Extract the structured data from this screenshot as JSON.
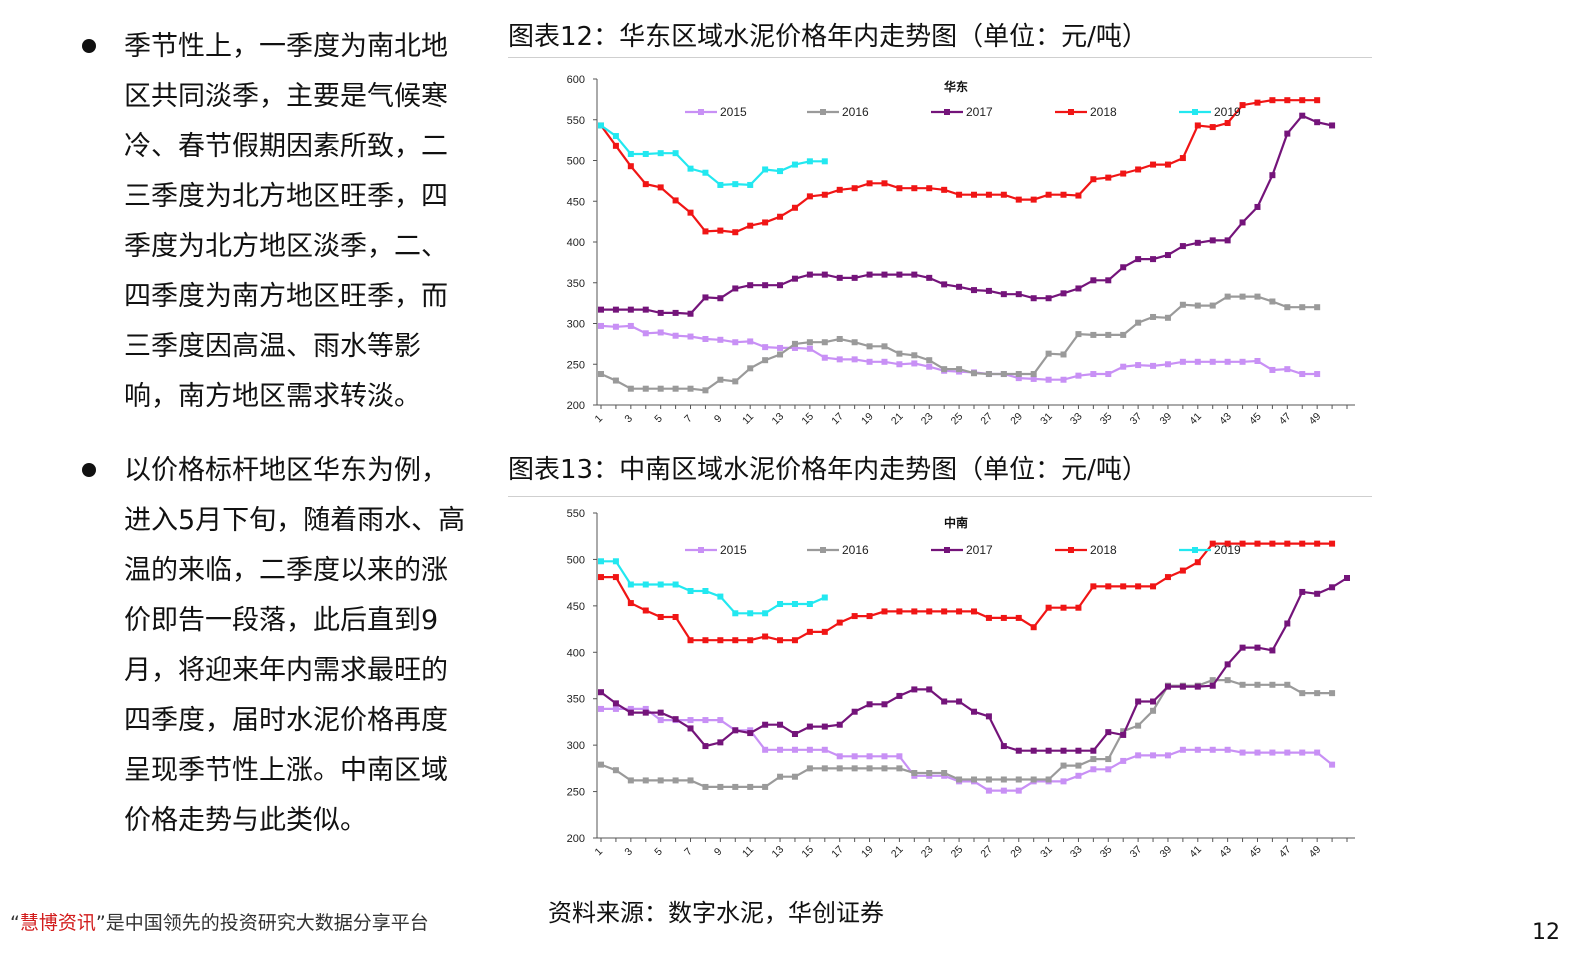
{
  "bullets": [
    "季节性上，一季度为南北地区共同淡季，主要是气候寒冷、春节假期因素所致，二三季度为北方地区旺季，四季度为北方地区淡季，二、四季度为南方地区旺季，而三季度因高温、雨水等影响，南方地区需求转淡。",
    "以价格标杆地区华东为例，进入5月下旬，随着雨水、高温的来临，二季度以来的涨价即告一段落，此后直到9月，将迎来年内需求最旺的四季度，届时水泥价格再度呈现季节性上涨。中南区域价格走势与此类似。"
  ],
  "figures": [
    {
      "title": "图表12：华东区域水泥价格年内走势图（单位：元/吨）"
    },
    {
      "title": "图表13：中南区域水泥价格年内走势图（单位：元/吨）"
    }
  ],
  "source": "资料来源：数字水泥，华创证券",
  "footer": {
    "quote_open": "“",
    "brand": "慧博资讯",
    "quote_close": "”",
    "tagline": "是中国领先的投资研究大数据分享平台"
  },
  "page_number": "12",
  "colors": {
    "2015": "#c890f5",
    "2016": "#9a9a9a",
    "2017": "#74147a",
    "2018": "#f01515",
    "2019": "#22e8f0"
  },
  "chart_data": [
    {
      "type": "line",
      "title": "华东",
      "xlabel": "",
      "ylabel": "",
      "ylim": [
        200,
        600
      ],
      "yticks": [
        200,
        250,
        300,
        350,
        400,
        450,
        500,
        550,
        600
      ],
      "xticks": [
        1,
        3,
        5,
        7,
        9,
        11,
        13,
        15,
        17,
        19,
        21,
        23,
        25,
        27,
        29,
        31,
        33,
        35,
        37,
        39,
        41,
        43,
        45,
        47,
        49
      ],
      "xmax": 51,
      "series": [
        {
          "name": "2015",
          "values": [
            297,
            296,
            297,
            288,
            289,
            285,
            284,
            281,
            280,
            277,
            278,
            271,
            270,
            270,
            269,
            258,
            256,
            256,
            253,
            253,
            250,
            251,
            247,
            242,
            241,
            240,
            238,
            238,
            233,
            232,
            231,
            231,
            236,
            238,
            238,
            247,
            249,
            248,
            250,
            253,
            253,
            253,
            253,
            253,
            254,
            243,
            244,
            238,
            238
          ]
        },
        {
          "name": "2016",
          "values": [
            238,
            230,
            220,
            220,
            220,
            220,
            220,
            218,
            231,
            229,
            245,
            255,
            262,
            275,
            277,
            277,
            281,
            277,
            272,
            272,
            263,
            261,
            255,
            244,
            244,
            239,
            238,
            238,
            238,
            238,
            263,
            262,
            287,
            286,
            286,
            286,
            301,
            308,
            307,
            323,
            322,
            322,
            333,
            333,
            333,
            327,
            320,
            320,
            320
          ]
        },
        {
          "name": "2017",
          "values": [
            317,
            317,
            317,
            317,
            313,
            313,
            312,
            332,
            331,
            343,
            347,
            347,
            347,
            355,
            360,
            360,
            356,
            356,
            360,
            360,
            360,
            360,
            356,
            348,
            345,
            341,
            340,
            336,
            336,
            331,
            331,
            337,
            343,
            353,
            353,
            369,
            379,
            379,
            384,
            395,
            399,
            402,
            402,
            424,
            443,
            482,
            533,
            555,
            547,
            543
          ]
        },
        {
          "name": "2018",
          "values": [
            543,
            518,
            493,
            471,
            467,
            451,
            436,
            413,
            414,
            412,
            420,
            424,
            431,
            442,
            456,
            458,
            464,
            466,
            472,
            472,
            466,
            466,
            466,
            464,
            458,
            458,
            458,
            458,
            452,
            452,
            458,
            458,
            457,
            477,
            479,
            484,
            489,
            495,
            495,
            503,
            543,
            541,
            546,
            568,
            571,
            574,
            574,
            574,
            574
          ]
        },
        {
          "name": "2019",
          "values": [
            543,
            530,
            508,
            508,
            509,
            509,
            490,
            485,
            470,
            471,
            470,
            489,
            487,
            495,
            499,
            499
          ]
        }
      ]
    },
    {
      "type": "line",
      "title": "中南",
      "xlabel": "",
      "ylabel": "",
      "ylim": [
        200,
        550
      ],
      "yticks": [
        200,
        250,
        300,
        350,
        400,
        450,
        500,
        550
      ],
      "xticks": [
        1,
        3,
        5,
        7,
        9,
        11,
        13,
        15,
        17,
        19,
        21,
        23,
        25,
        27,
        29,
        31,
        33,
        35,
        37,
        39,
        41,
        43,
        45,
        47,
        49
      ],
      "xmax": 51,
      "series": [
        {
          "name": "2015",
          "values": [
            339,
            339,
            339,
            339,
            327,
            327,
            327,
            327,
            327,
            316,
            316,
            295,
            295,
            295,
            295,
            295,
            288,
            288,
            288,
            288,
            288,
            267,
            267,
            267,
            261,
            261,
            251,
            251,
            251,
            261,
            261,
            261,
            267,
            274,
            274,
            283,
            289,
            289,
            289,
            295,
            295,
            295,
            295,
            292,
            292,
            292,
            292,
            292,
            292,
            279
          ]
        },
        {
          "name": "2016",
          "values": [
            279,
            273,
            262,
            262,
            262,
            262,
            262,
            255,
            255,
            255,
            255,
            255,
            266,
            266,
            275,
            275,
            275,
            275,
            275,
            275,
            275,
            270,
            270,
            270,
            263,
            263,
            263,
            263,
            263,
            263,
            263,
            278,
            278,
            285,
            285,
            315,
            321,
            337,
            364,
            364,
            364,
            370,
            370,
            365,
            365,
            365,
            365,
            356,
            356,
            356
          ]
        },
        {
          "name": "2017",
          "values": [
            357,
            345,
            335,
            335,
            335,
            328,
            318,
            299,
            303,
            316,
            313,
            322,
            322,
            312,
            320,
            320,
            322,
            336,
            344,
            344,
            353,
            360,
            360,
            347,
            347,
            336,
            331,
            299,
            294,
            294,
            294,
            294,
            294,
            294,
            314,
            311,
            347,
            347,
            363,
            363,
            363,
            364,
            387,
            405,
            405,
            402,
            431,
            465,
            463,
            470,
            480
          ]
        },
        {
          "name": "2018",
          "values": [
            481,
            481,
            453,
            445,
            438,
            438,
            413,
            413,
            413,
            413,
            413,
            417,
            413,
            413,
            422,
            422,
            432,
            439,
            439,
            444,
            444,
            444,
            444,
            444,
            444,
            444,
            437,
            437,
            437,
            427,
            448,
            448,
            448,
            471,
            471,
            471,
            471,
            471,
            481,
            488,
            497,
            517,
            517,
            517,
            517,
            517,
            517,
            517,
            517,
            517
          ]
        },
        {
          "name": "2019",
          "values": [
            498,
            498,
            473,
            473,
            473,
            473,
            466,
            466,
            460,
            442,
            442,
            442,
            452,
            452,
            452,
            459
          ]
        }
      ]
    }
  ]
}
